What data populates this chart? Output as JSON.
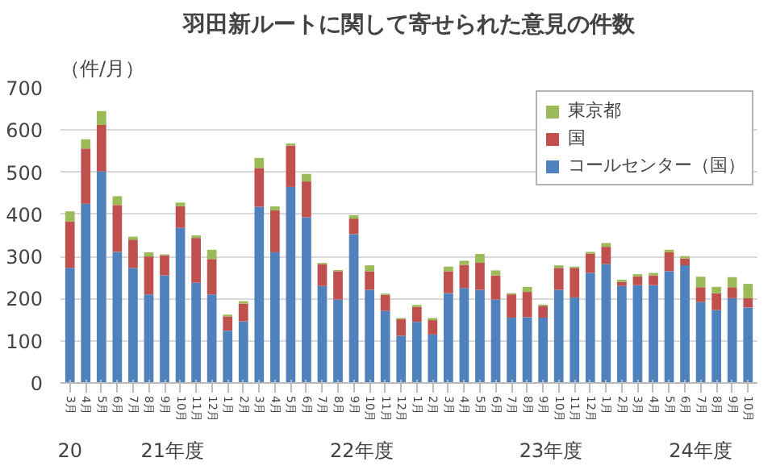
{
  "chart_data": {
    "type": "bar",
    "stacked": true,
    "title": "羽田新ルートに関して寄せられた意見の件数",
    "ylabel": "（件/月）",
    "categories": [
      "3月",
      "4月",
      "5月",
      "6月",
      "7月",
      "8月",
      "9月",
      "10月",
      "11月",
      "12月",
      "1月",
      "2月",
      "3月",
      "4月",
      "5月",
      "6月",
      "7月",
      "8月",
      "9月",
      "10月",
      "11月",
      "12月",
      "1月",
      "2月",
      "3月",
      "4月",
      "5月",
      "6月",
      "7月",
      "8月",
      "9月",
      "10月",
      "11月",
      "12月",
      "1月",
      "2月",
      "3月",
      "4月",
      "5月",
      "6月",
      "7月",
      "8月",
      "9月",
      "10月"
    ],
    "series": [
      {
        "name": "コールセンター（国）",
        "color": "#4f81bd",
        "values": [
          273,
          425,
          502,
          311,
          273,
          210,
          255,
          368,
          238,
          210,
          124,
          146,
          418,
          310,
          465,
          393,
          230,
          198,
          353,
          221,
          171,
          112,
          145,
          115,
          213,
          225,
          221,
          198,
          155,
          156,
          155,
          221,
          203,
          261,
          282,
          230,
          232,
          232,
          265,
          279,
          192,
          173,
          201,
          179
        ]
      },
      {
        "name": "国",
        "color": "#c0504d",
        "values": [
          110,
          131,
          110,
          111,
          67,
          90,
          48,
          51,
          106,
          84,
          34,
          42,
          92,
          100,
          98,
          85,
          52,
          67,
          37,
          44,
          38,
          39,
          35,
          34,
          52,
          55,
          64,
          57,
          55,
          60,
          28,
          52,
          70,
          46,
          41,
          10,
          21,
          23,
          45,
          16,
          35,
          40,
          26,
          22
        ]
      },
      {
        "name": "東京都",
        "color": "#9bbb59",
        "values": [
          24,
          22,
          33,
          21,
          7,
          10,
          2,
          9,
          6,
          22,
          4,
          6,
          24,
          9,
          5,
          18,
          3,
          3,
          8,
          14,
          3,
          3,
          5,
          5,
          11,
          10,
          21,
          12,
          3,
          12,
          3,
          6,
          3,
          4,
          9,
          5,
          5,
          6,
          6,
          6,
          25,
          15,
          24,
          34
        ]
      }
    ],
    "annotations": [
      "20",
      "21年度",
      "22年度",
      "23年度",
      "24年度"
    ],
    "ylim": [
      0,
      700
    ],
    "yticks": [
      0,
      100,
      200,
      300,
      400,
      500,
      600,
      700
    ],
    "grid": "y",
    "legend": "top right"
  }
}
